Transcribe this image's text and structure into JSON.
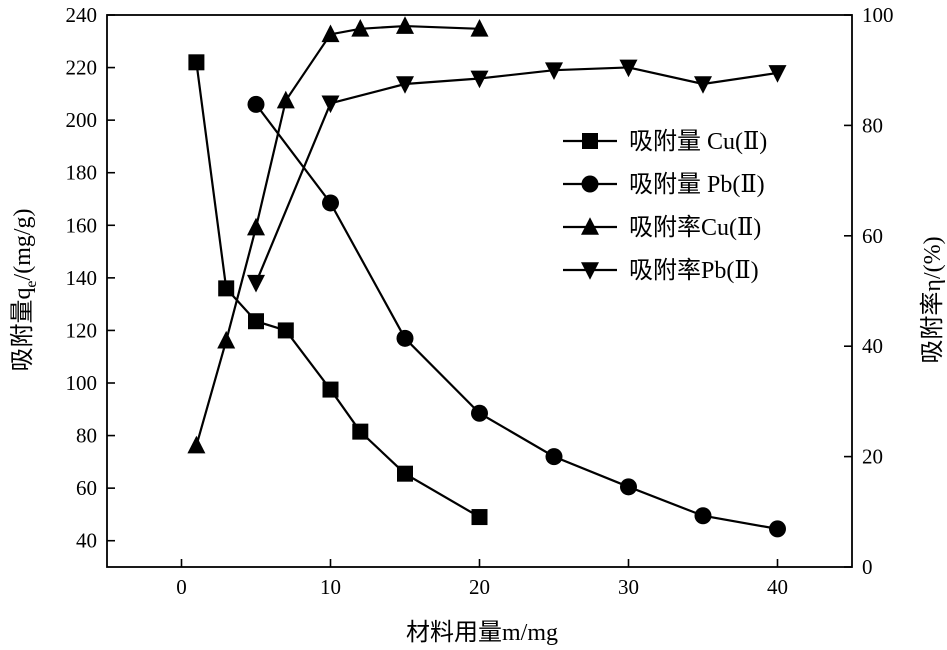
{
  "chart_data": {
    "type": "line",
    "xlabel": "材料用量m/mg",
    "ylabel_left": "吸附量q",
    "ylabel_left_sub": "e",
    "ylabel_left_unit": "/(mg/g)",
    "ylabel_right": "吸附率η/(%)",
    "xlim": [
      -5,
      45
    ],
    "ylim_left": [
      30,
      240
    ],
    "ylim_right": [
      0,
      100
    ],
    "x_ticks": [
      "0",
      "10",
      "20",
      "30",
      "40"
    ],
    "y_left_ticks": [
      "40",
      "60",
      "80",
      "100",
      "120",
      "140",
      "160",
      "180",
      "200",
      "220",
      "240"
    ],
    "y_right_ticks": [
      "0",
      "20",
      "40",
      "60",
      "80",
      "100"
    ],
    "legend_position": "center-right",
    "series": [
      {
        "name": "吸附量 Cu(Ⅱ)",
        "axis": "left",
        "marker": "square",
        "x": [
          1,
          3,
          5,
          7,
          10,
          12,
          15,
          20
        ],
        "y": [
          222,
          136,
          123.5,
          120,
          97.5,
          81.5,
          65.5,
          49
        ]
      },
      {
        "name": "吸附量 Pb(Ⅱ)",
        "axis": "left",
        "marker": "circle",
        "x": [
          5,
          10,
          15,
          20,
          25,
          30,
          35,
          40
        ],
        "y": [
          206,
          168.5,
          117,
          88.5,
          72,
          60.5,
          49.5,
          44.5
        ]
      },
      {
        "name": "吸附率Cu(Ⅱ)",
        "axis": "right",
        "marker": "triangle-up",
        "x": [
          1,
          3,
          5,
          7,
          10,
          12,
          15,
          20
        ],
        "y": [
          22,
          41,
          61.5,
          84.5,
          96.5,
          97.5,
          98,
          97.5
        ]
      },
      {
        "name": "吸附率Pb(Ⅱ)",
        "axis": "right",
        "marker": "triangle-down",
        "x": [
          5,
          10,
          15,
          20,
          25,
          30,
          35,
          40
        ],
        "y": [
          51.5,
          84,
          87.5,
          88.5,
          90,
          90.5,
          87.5,
          89.5
        ]
      }
    ]
  }
}
